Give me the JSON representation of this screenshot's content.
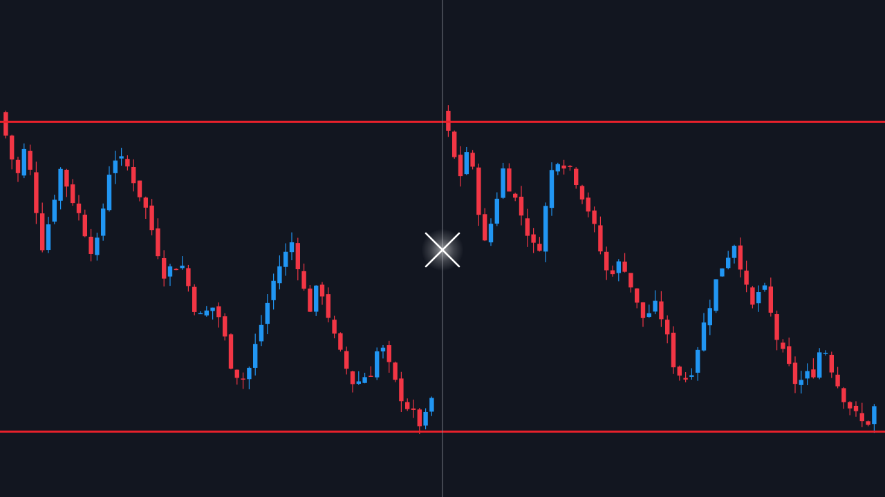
{
  "colors": {
    "background": "#121620",
    "bullish": "#2196f3",
    "bearish": "#f23645",
    "level_line": "#e8212b",
    "crosshair": "#8a8f99",
    "cursor": "#ffffff"
  },
  "crosshair": {
    "visible": true,
    "cursor_icon": "close-x-icon"
  },
  "chart_data": {
    "type": "candlestick",
    "title": "",
    "xlabel": "",
    "ylabel": "",
    "grid": false,
    "legend": "none",
    "ylim": [
      0,
      100
    ],
    "levels": [
      {
        "name": "resistance",
        "value": 77
      },
      {
        "name": "support",
        "value": 11
      }
    ],
    "segments": [
      {
        "name": "left-pattern",
        "waypoints": [
          [
            0,
            79
          ],
          [
            4,
            65
          ],
          [
            6,
            72
          ],
          [
            10,
            50
          ],
          [
            14,
            67
          ],
          [
            18,
            58
          ],
          [
            22,
            48
          ],
          [
            26,
            70
          ],
          [
            30,
            67
          ],
          [
            34,
            58
          ],
          [
            38,
            45
          ],
          [
            42,
            47
          ],
          [
            46,
            35
          ],
          [
            50,
            38
          ],
          [
            54,
            24
          ],
          [
            57,
            22
          ],
          [
            60,
            32
          ],
          [
            64,
            45
          ],
          [
            68,
            52
          ],
          [
            70,
            42
          ],
          [
            72,
            37
          ],
          [
            74,
            43
          ],
          [
            78,
            29
          ],
          [
            82,
            21
          ],
          [
            86,
            24
          ],
          [
            88,
            30
          ],
          [
            92,
            20
          ],
          [
            96,
            14
          ],
          [
            98,
            12
          ],
          [
            100,
            18
          ]
        ]
      },
      {
        "name": "right-pattern",
        "waypoints": [
          [
            0,
            79
          ],
          [
            4,
            65
          ],
          [
            6,
            72
          ],
          [
            10,
            50
          ],
          [
            14,
            67
          ],
          [
            18,
            58
          ],
          [
            22,
            48
          ],
          [
            26,
            70
          ],
          [
            30,
            67
          ],
          [
            34,
            58
          ],
          [
            38,
            45
          ],
          [
            42,
            47
          ],
          [
            46,
            35
          ],
          [
            50,
            38
          ],
          [
            54,
            24
          ],
          [
            57,
            22
          ],
          [
            60,
            32
          ],
          [
            64,
            45
          ],
          [
            68,
            52
          ],
          [
            70,
            42
          ],
          [
            72,
            37
          ],
          [
            74,
            43
          ],
          [
            78,
            29
          ],
          [
            82,
            21
          ],
          [
            86,
            24
          ],
          [
            88,
            30
          ],
          [
            92,
            20
          ],
          [
            96,
            14
          ],
          [
            98,
            12
          ],
          [
            100,
            16
          ]
        ]
      }
    ]
  }
}
